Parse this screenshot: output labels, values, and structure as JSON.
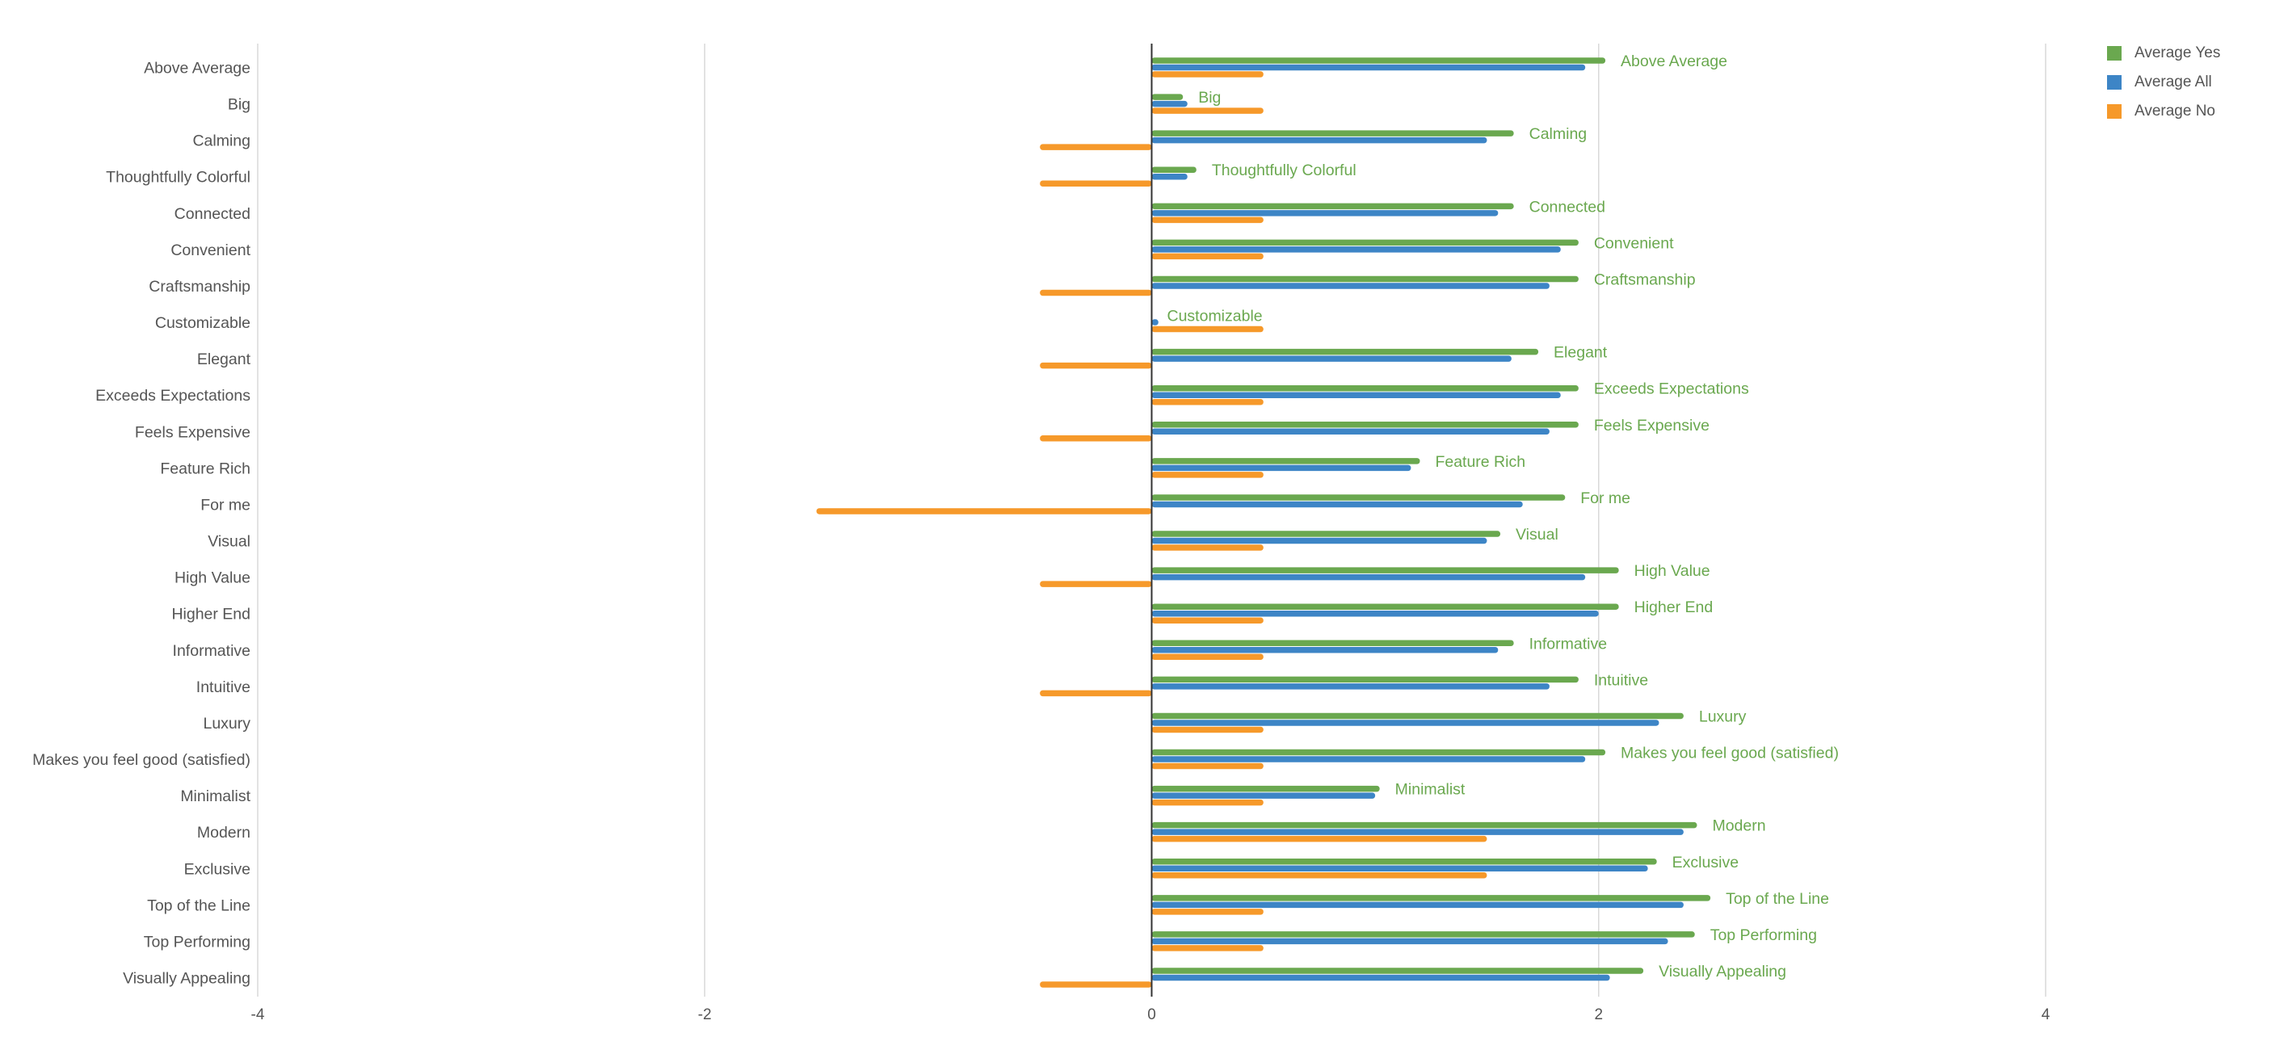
{
  "chart_data": {
    "type": "bar",
    "orientation": "horizontal",
    "title": "",
    "xlabel": "",
    "ylabel": "",
    "xlim": [
      -4,
      5
    ],
    "xticks": [
      -4,
      -2,
      0,
      2,
      4
    ],
    "grid": true,
    "legend_position": "top-right",
    "categories": [
      "Above Average",
      "Big",
      "Calming",
      "Thoughtfully Colorful",
      "Connected",
      "Convenient",
      "Craftsmanship",
      "Customizable",
      "Elegant",
      "Exceeds Expectations",
      "Feels Expensive",
      "Feature Rich",
      "For me",
      "Visual",
      "High Value",
      "Higher End",
      "Informative",
      "Intuitive",
      "Luxury",
      "Makes you feel good (satisfied)",
      "Minimalist",
      "Modern",
      "Exclusive",
      "Top of the Line",
      "Top Performing",
      "Visually Appealing"
    ],
    "series": [
      {
        "name": "Average Yes",
        "color": "#6aa84f",
        "values": [
          2.03,
          0.14,
          1.62,
          0.2,
          1.62,
          1.91,
          1.91,
          0,
          1.73,
          1.91,
          1.91,
          1.2,
          1.85,
          1.56,
          2.09,
          2.09,
          1.62,
          1.91,
          2.38,
          2.03,
          1.02,
          2.44,
          2.26,
          2.5,
          2.43,
          2.2
        ]
      },
      {
        "name": "Average All",
        "color": "#3d85c6",
        "values": [
          1.94,
          0.16,
          1.5,
          0.16,
          1.55,
          1.83,
          1.78,
          0.03,
          1.61,
          1.83,
          1.78,
          1.16,
          1.66,
          1.5,
          1.94,
          2.0,
          1.55,
          1.78,
          2.27,
          1.94,
          1.0,
          2.38,
          2.22,
          2.38,
          2.31,
          2.05
        ]
      },
      {
        "name": "Average No",
        "color": "#f6992a",
        "values": [
          0.5,
          0.5,
          -0.5,
          -0.5,
          0.5,
          0.5,
          -0.5,
          0.5,
          -0.5,
          0.5,
          -0.5,
          0.5,
          -1.5,
          0.5,
          -0.5,
          0.5,
          0.5,
          -0.5,
          0.5,
          0.5,
          0.5,
          1.5,
          1.5,
          0.5,
          0.5,
          -0.5
        ]
      }
    ],
    "annotations": [
      "Above Average",
      "Big",
      "Calming",
      "Thoughtfully Colorful",
      "Connected",
      "Convenient",
      "Craftsmanship",
      "Customizable",
      "Elegant",
      "Exceeds Expectations",
      "Feels Expensive",
      "Feature Rich",
      "For me",
      "Visual",
      "High Value",
      "Higher End",
      "Informative",
      "Intuitive",
      "Luxury",
      "Makes you feel good (satisfied)",
      "Minimalist",
      "Modern",
      "Exclusive",
      "Top of the Line",
      "Top Performing",
      "Visually Appealing"
    ],
    "colors": {
      "gridline": "#d9d9d9",
      "zero_axis": "#333333",
      "label_text": "#555555",
      "annotation_text": "#6aa84f"
    }
  }
}
